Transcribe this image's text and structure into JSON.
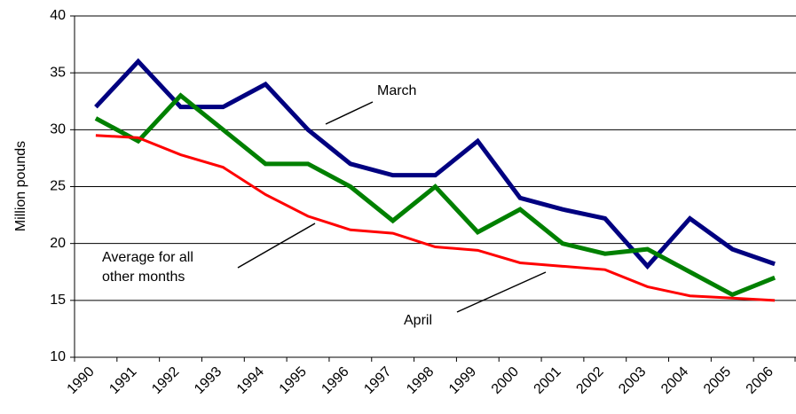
{
  "chart_data": {
    "type": "line",
    "y_label": "Million pounds",
    "categories": [
      "1990",
      "1991",
      "1992",
      "1993",
      "1994",
      "1995",
      "1996",
      "1997",
      "1998",
      "1999",
      "2000",
      "2001",
      "2002",
      "2003",
      "2004",
      "2005",
      "2006"
    ],
    "series": [
      {
        "name": "March",
        "color": "#000080",
        "width": 5,
        "values": [
          32,
          36,
          32,
          32,
          34,
          30,
          27,
          26,
          26,
          29,
          24,
          23,
          22.2,
          18,
          22.2,
          19.5,
          18.2
        ]
      },
      {
        "name": "April",
        "color": "#008000",
        "width": 5,
        "values": [
          31,
          29,
          33,
          30,
          27,
          27,
          25,
          22,
          25,
          21,
          23,
          20,
          19.1,
          19.5,
          17.5,
          15.5,
          17
        ]
      },
      {
        "name": "Average for all other months",
        "color": "#ff0000",
        "width": 3,
        "values": [
          29.5,
          29.3,
          27.8,
          26.7,
          24.3,
          22.4,
          21.2,
          20.9,
          19.7,
          19.4,
          18.3,
          18,
          17.7,
          16.2,
          15.4,
          15.2,
          15.0
        ]
      }
    ],
    "ylim": [
      10,
      40
    ],
    "yticks": [
      10,
      15,
      20,
      25,
      30,
      35,
      40
    ],
    "grid": true
  }
}
